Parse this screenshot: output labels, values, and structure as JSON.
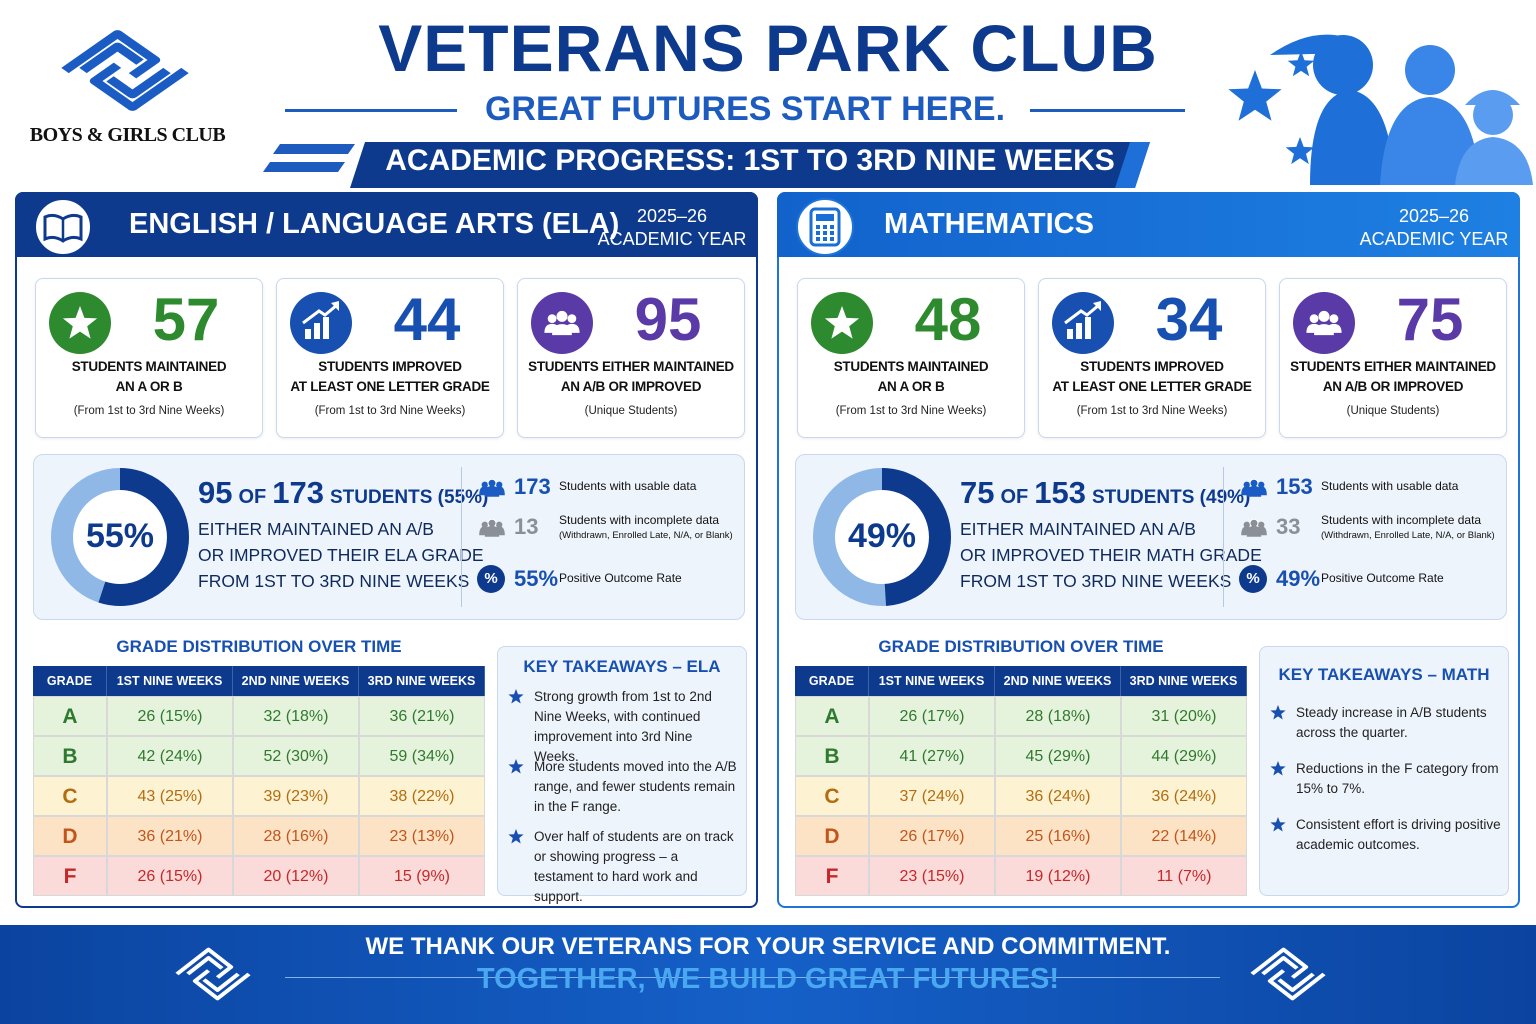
{
  "header": {
    "logo_text": "BOYS & GIRLS CLUB",
    "title": "VETERANS PARK CLUB",
    "tagline": "GREAT FUTURES START HERE.",
    "banner": "ACADEMIC PROGRESS: 1ST TO 3RD NINE WEEKS"
  },
  "panels": [
    {
      "subject": "ENGLISH / LANGUAGE ARTS (ELA)",
      "year": "2025–26",
      "year_label": "ACADEMIC YEAR",
      "stats": [
        {
          "value": 57,
          "label": [
            "STUDENTS MAINTAINED",
            "AN A OR B"
          ],
          "note": "(From 1st to 3rd Nine Weeks)"
        },
        {
          "value": 44,
          "label": [
            "STUDENTS IMPROVED",
            "AT LEAST ONE LETTER GRADE"
          ],
          "note": "(From 1st to 3rd Nine Weeks)"
        },
        {
          "value": 95,
          "label": [
            "STUDENTS EITHER MAINTAINED",
            "AN A/B OR IMPROVED"
          ],
          "note": "(Unique Students)"
        }
      ],
      "donut": {
        "value": 55,
        "label": "55%"
      },
      "headline": {
        "count": 95,
        "of": "OF",
        "total": 173,
        "rest": "STUDENTS (55%)"
      },
      "summary": [
        "EITHER MAINTAINED AN A/B",
        "OR IMPROVED THEIR ELA GRADE",
        "FROM 1ST TO 3RD NINE WEEKS"
      ],
      "facts": [
        {
          "value": "173",
          "text": "Students with usable data"
        },
        {
          "value": "13",
          "text": "Students with incomplete data",
          "note": "(Withdrawn, Enrolled Late, N/A, or Blank)"
        },
        {
          "icon": "%",
          "value": "55%",
          "text": "Positive Outcome Rate"
        }
      ],
      "table": {
        "title": "GRADE DISTRIBUTION OVER TIME",
        "header": [
          "GRADE",
          "1ST NINE WEEKS",
          "2ND NINE WEEKS",
          "3RD NINE WEEKS"
        ],
        "rows": [
          [
            "A",
            "26 (15%)",
            "32 (18%)",
            "36 (21%)"
          ],
          [
            "B",
            "42 (24%)",
            "52 (30%)",
            "59 (34%)"
          ],
          [
            "C",
            "43 (25%)",
            "39 (23%)",
            "38 (22%)"
          ],
          [
            "D",
            "36 (21%)",
            "28 (16%)",
            "23 (13%)"
          ],
          [
            "F",
            "26 (15%)",
            "20 (12%)",
            "15 (9%)"
          ]
        ]
      },
      "takeaways": {
        "title": "KEY TAKEAWAYS – ELA",
        "items": [
          "Strong growth from 1st to 2nd Nine Weeks, with continued improvement into 3rd Nine Weeks.",
          "More students moved into the A/B range, and fewer students remain in the F range.",
          "Over half of students are on track or showing progress – a testament to hard work and support."
        ]
      }
    },
    {
      "subject": "MATHEMATICS",
      "year": "2025–26",
      "year_label": "ACADEMIC YEAR",
      "stats": [
        {
          "value": 48,
          "label": [
            "STUDENTS MAINTAINED",
            "AN A OR B"
          ],
          "note": "(From 1st to 3rd Nine Weeks)"
        },
        {
          "value": 34,
          "label": [
            "STUDENTS IMPROVED",
            "AT LEAST ONE LETTER GRADE"
          ],
          "note": "(From 1st to 3rd Nine Weeks)"
        },
        {
          "value": 75,
          "label": [
            "STUDENTS EITHER MAINTAINED",
            "AN A/B OR IMPROVED"
          ],
          "note": "(Unique Students)"
        }
      ],
      "donut": {
        "value": 49,
        "label": "49%"
      },
      "headline": {
        "count": 75,
        "of": "OF",
        "total": 153,
        "rest": "STUDENTS (49%)"
      },
      "summary": [
        "EITHER MAINTAINED AN A/B",
        "OR IMPROVED THEIR MATH GRADE",
        "FROM 1ST TO 3RD NINE WEEKS"
      ],
      "facts": [
        {
          "value": "153",
          "text": "Students with usable data"
        },
        {
          "value": "33",
          "text": "Students with incomplete data",
          "note": "(Withdrawn, Enrolled Late, N/A, or Blank)"
        },
        {
          "icon": "%",
          "value": "49%",
          "text": "Positive Outcome Rate"
        }
      ],
      "table": {
        "title": "GRADE DISTRIBUTION OVER TIME",
        "header": [
          "GRADE",
          "1ST NINE WEEKS",
          "2ND NINE WEEKS",
          "3RD NINE WEEKS"
        ],
        "rows": [
          [
            "A",
            "26 (17%)",
            "28 (18%)",
            "31 (20%)"
          ],
          [
            "B",
            "41 (27%)",
            "45 (29%)",
            "44 (29%)"
          ],
          [
            "C",
            "37 (24%)",
            "36 (24%)",
            "36 (24%)"
          ],
          [
            "D",
            "26 (17%)",
            "25 (16%)",
            "22 (14%)"
          ],
          [
            "F",
            "23 (15%)",
            "19 (12%)",
            "11 (7%)"
          ]
        ]
      },
      "takeaways": {
        "title": "KEY TAKEAWAYS – MATH",
        "items": [
          "Steady increase in A/B students across the quarter.",
          "Reductions in the F category from 15% to 7%.",
          "Consistent effort is driving positive academic outcomes."
        ]
      }
    }
  ],
  "footer": {
    "line1": "WE THANK OUR VETERANS FOR YOUR SERVICE AND COMMITMENT.",
    "line2": "TOGETHER, WE BUILD GREAT FUTURES!"
  }
}
